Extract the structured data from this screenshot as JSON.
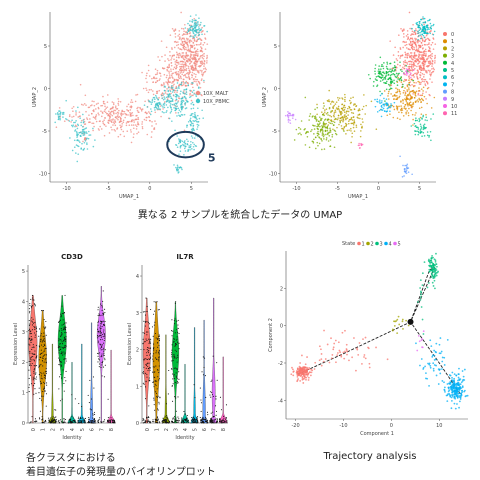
{
  "caption_umap": "異なる 2 サンプルを統合したデータの UMAP",
  "caption_violin_1": "各クラスタにおける",
  "caption_violin_2": "着目遺伝子の発現量のバイオリンプロット",
  "caption_trajectory": "Trajectory analysis",
  "chart_data": [
    {
      "type": "scatter",
      "xlabel": "UMAP_1",
      "ylabel": "UMAP_2",
      "xticks": [
        -10,
        -5,
        0,
        5
      ],
      "yticks": [
        5,
        0,
        -5,
        -10
      ],
      "xlim": [
        -12,
        7
      ],
      "ylim": [
        -11,
        9
      ],
      "legend": [
        "10X_MALT",
        "10X_PBMC"
      ],
      "colors": [
        "#f08a80",
        "#3cc3c8"
      ],
      "annotation": "5",
      "highlight": {
        "cx": 4.3,
        "cy": -6.6,
        "rx": 2.2,
        "ry": 1.5
      },
      "clusters": [
        {
          "series": 0,
          "cx": 4.8,
          "cy": 3.8,
          "sx": 1.2,
          "sy": 2.0,
          "n": 520
        },
        {
          "series": 0,
          "cx": 2.2,
          "cy": 0.8,
          "sx": 1.3,
          "sy": 1.3,
          "n": 180
        },
        {
          "series": 0,
          "cx": -4.0,
          "cy": -3.3,
          "sx": 2.7,
          "sy": 1.0,
          "n": 330
        },
        {
          "series": 0,
          "cx": -7.8,
          "cy": -5.8,
          "sx": 0.2,
          "sy": 0.2,
          "n": 8
        },
        {
          "series": 1,
          "cx": 5.4,
          "cy": 7.0,
          "sx": 0.5,
          "sy": 0.6,
          "n": 90
        },
        {
          "series": 1,
          "cx": 3.5,
          "cy": -1.4,
          "sx": 1.1,
          "sy": 1.1,
          "n": 190
        },
        {
          "series": 1,
          "cx": 0.8,
          "cy": -2.0,
          "sx": 0.5,
          "sy": 0.5,
          "n": 50
        },
        {
          "series": 1,
          "cx": -8.2,
          "cy": -5.5,
          "sx": 0.6,
          "sy": 1.2,
          "n": 90
        },
        {
          "series": 1,
          "cx": -10.8,
          "cy": -3.0,
          "sx": 0.3,
          "sy": 0.5,
          "n": 25
        },
        {
          "series": 1,
          "cx": 5.3,
          "cy": -4.3,
          "sx": 0.5,
          "sy": 0.7,
          "n": 50
        },
        {
          "series": 1,
          "cx": 4.3,
          "cy": -6.6,
          "sx": 0.7,
          "sy": 0.4,
          "n": 60
        },
        {
          "series": 1,
          "cx": 3.4,
          "cy": -9.5,
          "sx": 0.2,
          "sy": 0.4,
          "n": 18
        }
      ]
    },
    {
      "type": "scatter",
      "xlabel": "UMAP_1",
      "ylabel": "UMAP_2",
      "xticks": [
        -10,
        -5,
        0,
        5
      ],
      "yticks": [
        5,
        0,
        -5,
        -10
      ],
      "xlim": [
        -12,
        7
      ],
      "ylim": [
        -11,
        9
      ],
      "legend": [
        "0",
        "1",
        "2",
        "3",
        "4",
        "5",
        "6",
        "7",
        "8",
        "9",
        "10",
        "11"
      ],
      "colors": [
        "#f8766d",
        "#de8c00",
        "#b79f00",
        "#7cae00",
        "#00ba38",
        "#00c08b",
        "#00bfc4",
        "#00b4f0",
        "#619cff",
        "#c77cff",
        "#f564e3",
        "#ff64b0"
      ],
      "clusters": [
        {
          "series": 0,
          "cx": 4.8,
          "cy": 3.8,
          "sx": 1.2,
          "sy": 2.0,
          "n": 520
        },
        {
          "series": 1,
          "cx": 3.4,
          "cy": -1.2,
          "sx": 1.1,
          "sy": 1.1,
          "n": 200
        },
        {
          "series": 2,
          "cx": -4.2,
          "cy": -3.0,
          "sx": 1.3,
          "sy": 1.1,
          "n": 200
        },
        {
          "series": 3,
          "cx": -7.0,
          "cy": -4.8,
          "sx": 1.2,
          "sy": 1.0,
          "n": 160
        },
        {
          "series": 4,
          "cx": 1.2,
          "cy": 1.4,
          "sx": 1.0,
          "sy": 0.9,
          "n": 150
        },
        {
          "series": 5,
          "cx": 5.3,
          "cy": -4.5,
          "sx": 0.5,
          "sy": 0.7,
          "n": 60
        },
        {
          "series": 6,
          "cx": 5.5,
          "cy": 7.0,
          "sx": 0.5,
          "sy": 0.6,
          "n": 100
        },
        {
          "series": 7,
          "cx": 0.8,
          "cy": -2.0,
          "sx": 0.5,
          "sy": 0.5,
          "n": 50
        },
        {
          "series": 8,
          "cx": 3.4,
          "cy": -9.5,
          "sx": 0.25,
          "sy": 0.45,
          "n": 25
        },
        {
          "series": 9,
          "cx": -10.8,
          "cy": -3.2,
          "sx": 0.3,
          "sy": 0.4,
          "n": 25
        },
        {
          "series": 10,
          "cx": 3.6,
          "cy": 1.8,
          "sx": 0.3,
          "sy": 0.3,
          "n": 15
        },
        {
          "series": 11,
          "cx": -2.2,
          "cy": -6.8,
          "sx": 0.2,
          "sy": 0.2,
          "n": 10
        }
      ]
    },
    {
      "type": "violin",
      "title": "CD3D",
      "xlabel": "Identity",
      "ylabel": "Expression Level",
      "categories": [
        "0",
        "1",
        "2",
        "3",
        "4",
        "5",
        "6",
        "7",
        "8"
      ],
      "colors": [
        "#f8766d",
        "#d39200",
        "#93aa00",
        "#00ba38",
        "#00c19f",
        "#00b9e3",
        "#619cff",
        "#db72fb",
        "#ff61c3"
      ],
      "yticks": [
        0,
        1,
        2,
        3,
        4,
        5
      ],
      "ylim": [
        0,
        5.2
      ],
      "median": [
        2.6,
        2.1,
        0.2,
        2.7,
        0.1,
        0.1,
        0.3,
        2.9,
        0.1
      ],
      "spread": [
        0.8,
        0.8,
        0.6,
        0.7,
        0.6,
        0.5,
        0.8,
        0.6,
        0.4
      ],
      "max": [
        4.2,
        3.7,
        2.6,
        4.2,
        2.0,
        2.6,
        3.3,
        4.5,
        2.4
      ],
      "frac": [
        0.9,
        0.85,
        0.2,
        0.9,
        0.1,
        0.15,
        0.25,
        0.9,
        0.1
      ]
    },
    {
      "type": "violin",
      "title": "IL7R",
      "xlabel": "Identity",
      "ylabel": "Expression Level",
      "categories": [
        "0",
        "1",
        "2",
        "3",
        "4",
        "5",
        "6",
        "7",
        "8"
      ],
      "colors": [
        "#f8766d",
        "#d39200",
        "#93aa00",
        "#00ba38",
        "#00c19f",
        "#00b9e3",
        "#619cff",
        "#db72fb",
        "#ff61c3"
      ],
      "yticks": [
        0,
        1,
        2,
        3,
        4
      ],
      "ylim": [
        0,
        4.3
      ],
      "median": [
        1.9,
        1.7,
        0.2,
        1.9,
        0.1,
        0.3,
        0.3,
        0.8,
        0.1
      ],
      "spread": [
        0.7,
        0.8,
        0.6,
        0.6,
        0.4,
        0.5,
        0.7,
        0.6,
        0.3
      ],
      "max": [
        3.4,
        3.3,
        2.4,
        3.3,
        1.6,
        2.6,
        2.8,
        3.4,
        1.8
      ],
      "frac": [
        0.8,
        0.75,
        0.2,
        0.75,
        0.1,
        0.2,
        0.3,
        0.35,
        0.1
      ]
    },
    {
      "type": "scatter",
      "xlabel": "Component 1",
      "ylabel": "Component 2",
      "legend_title": "State",
      "legend": [
        "1",
        "2",
        "3",
        "4",
        "5"
      ],
      "colors": [
        "#f8766d",
        "#a3a500",
        "#00bf7d",
        "#00b0f6",
        "#e76bf3"
      ],
      "xticks": [
        -20,
        -10,
        0,
        10
      ],
      "yticks": [
        2,
        0,
        -2,
        -4
      ],
      "xlim": [
        -22,
        16
      ],
      "ylim": [
        -5,
        4
      ],
      "trajectory": [
        [
          -19.5,
          -2.6
        ],
        [
          -10,
          -1.5
        ],
        [
          4,
          0.2
        ],
        [
          8,
          3.0
        ],
        [
          9,
          3.1
        ],
        [
          4,
          0.2
        ],
        [
          10,
          -2.0
        ],
        [
          14.5,
          -3.7
        ]
      ],
      "branch_point": [
        4,
        0.2
      ],
      "clusters": [
        {
          "series": 0,
          "cx": -18.5,
          "cy": -2.5,
          "sx": 0.9,
          "sy": 0.2,
          "n": 160
        },
        {
          "series": 0,
          "cx": -10,
          "cy": -1.5,
          "sx": 4.5,
          "sy": 0.5,
          "n": 60
        },
        {
          "series": 1,
          "cx": 1.5,
          "cy": 0.0,
          "sx": 1.0,
          "sy": 0.3,
          "n": 15
        },
        {
          "series": 2,
          "cx": 8.8,
          "cy": 3.05,
          "sx": 0.5,
          "sy": 0.35,
          "n": 90
        },
        {
          "series": 2,
          "cx": 6.5,
          "cy": 1.6,
          "sx": 0.6,
          "sy": 0.8,
          "n": 15
        },
        {
          "series": 3,
          "cx": 13.5,
          "cy": -3.4,
          "sx": 1.0,
          "sy": 0.4,
          "n": 200
        },
        {
          "series": 3,
          "cx": 9.0,
          "cy": -1.8,
          "sx": 1.6,
          "sy": 0.6,
          "n": 50
        },
        {
          "series": 4,
          "cx": 6.0,
          "cy": -0.8,
          "sx": 0.6,
          "sy": 0.3,
          "n": 8
        }
      ]
    }
  ]
}
